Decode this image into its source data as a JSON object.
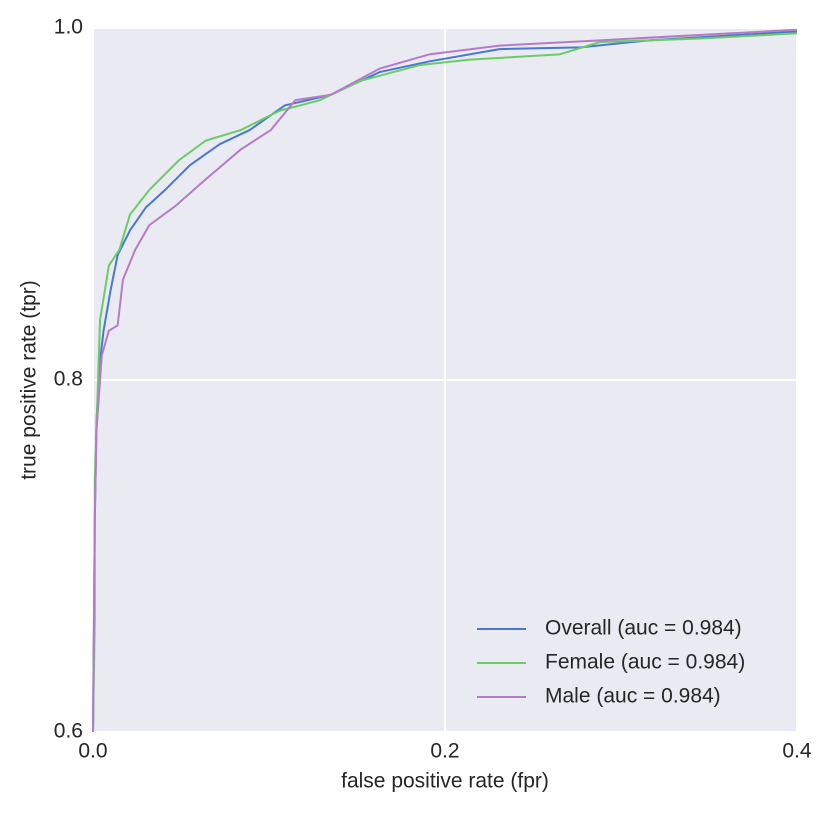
{
  "chart_data": {
    "type": "line",
    "xlabel": "false positive rate (fpr)",
    "ylabel": "true positive rate (tpr)",
    "xlim": [
      0,
      0.4
    ],
    "ylim": [
      0.6,
      1.0
    ],
    "xticks": [
      {
        "value": 0,
        "label": "0.0"
      },
      0.2,
      0.4
    ],
    "yticks": [
      0.6,
      0.8,
      {
        "value": 1.0,
        "label": "1.0"
      }
    ],
    "grid": true,
    "legend": "lower right",
    "series": [
      {
        "name": "Overall (auc = 0.984)",
        "color": "#4878cf",
        "x": [
          0,
          0.001,
          0.002,
          0.004,
          0.006,
          0.01,
          0.014,
          0.021,
          0.03,
          0.041,
          0.055,
          0.072,
          0.089,
          0.109,
          0.135,
          0.163,
          0.191,
          0.231,
          0.277,
          0.316,
          0.4
        ],
        "values": [
          0.6,
          0.72,
          0.777,
          0.811,
          0.828,
          0.851,
          0.871,
          0.885,
          0.898,
          0.908,
          0.922,
          0.934,
          0.942,
          0.956,
          0.962,
          0.975,
          0.981,
          0.988,
          0.989,
          0.993,
          0.998
        ]
      },
      {
        "name": "Female (auc = 0.984)",
        "color": "#6acc65",
        "x": [
          0,
          0.001,
          0.001,
          0.004,
          0.009,
          0.015,
          0.021,
          0.032,
          0.049,
          0.064,
          0.084,
          0.106,
          0.129,
          0.152,
          0.186,
          0.214,
          0.265,
          0.288,
          0.345,
          0.4
        ],
        "values": [
          0.6,
          0.664,
          0.743,
          0.834,
          0.865,
          0.874,
          0.894,
          0.908,
          0.925,
          0.936,
          0.942,
          0.953,
          0.959,
          0.97,
          0.979,
          0.982,
          0.985,
          0.992,
          0.994,
          0.997
        ]
      },
      {
        "name": "Male (auc = 0.984)",
        "color": "#b47cc7",
        "x": [
          0,
          0.001,
          0.002,
          0.005,
          0.009,
          0.014,
          0.017,
          0.024,
          0.032,
          0.047,
          0.064,
          0.084,
          0.101,
          0.115,
          0.135,
          0.163,
          0.191,
          0.231,
          0.288,
          0.4
        ],
        "values": [
          0.6,
          0.72,
          0.772,
          0.814,
          0.828,
          0.831,
          0.857,
          0.874,
          0.888,
          0.899,
          0.914,
          0.931,
          0.942,
          0.959,
          0.962,
          0.977,
          0.985,
          0.99,
          0.993,
          0.999
        ]
      }
    ]
  }
}
